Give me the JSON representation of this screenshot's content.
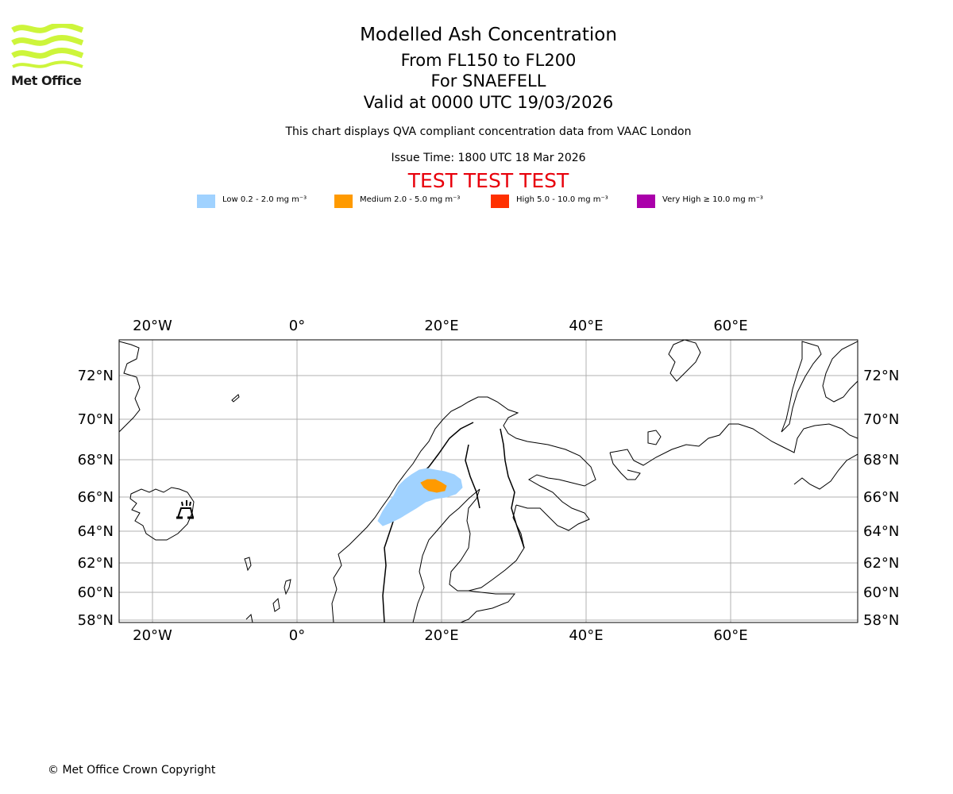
{
  "logo": {
    "name": "Met Office"
  },
  "titles": {
    "main": "Modelled Ash Concentration",
    "levels": "From FL150 to FL200",
    "volcano": "For SNAEFELL",
    "valid": "Valid at 0000 UTC 19/03/2026",
    "compliance": "This chart displays QVA compliant concentration data from VAAC London",
    "issue": "Issue Time: 1800 UTC 18 Mar 2026",
    "test": "TEST TEST TEST"
  },
  "legend": [
    {
      "label": "Low 0.2 - 2.0 mg m⁻³",
      "color": "#a0d2ff"
    },
    {
      "label": "Medium 2.0 - 5.0 mg m⁻³",
      "color": "#ff9a00"
    },
    {
      "label": "High 5.0 - 10.0 mg m⁻³",
      "color": "#ff3000"
    },
    {
      "label": "Very High  ≥  10.0 mg m⁻³",
      "color": "#aa00aa"
    }
  ],
  "map": {
    "lon_labels": [
      "20°W",
      "0°",
      "20°E",
      "40°E",
      "60°E"
    ],
    "lat_labels": [
      "72°N",
      "70°N",
      "68°N",
      "66°N",
      "64°N",
      "62°N",
      "60°N",
      "58°N"
    ]
  },
  "copyright": "© Met Office Crown Copyright"
}
